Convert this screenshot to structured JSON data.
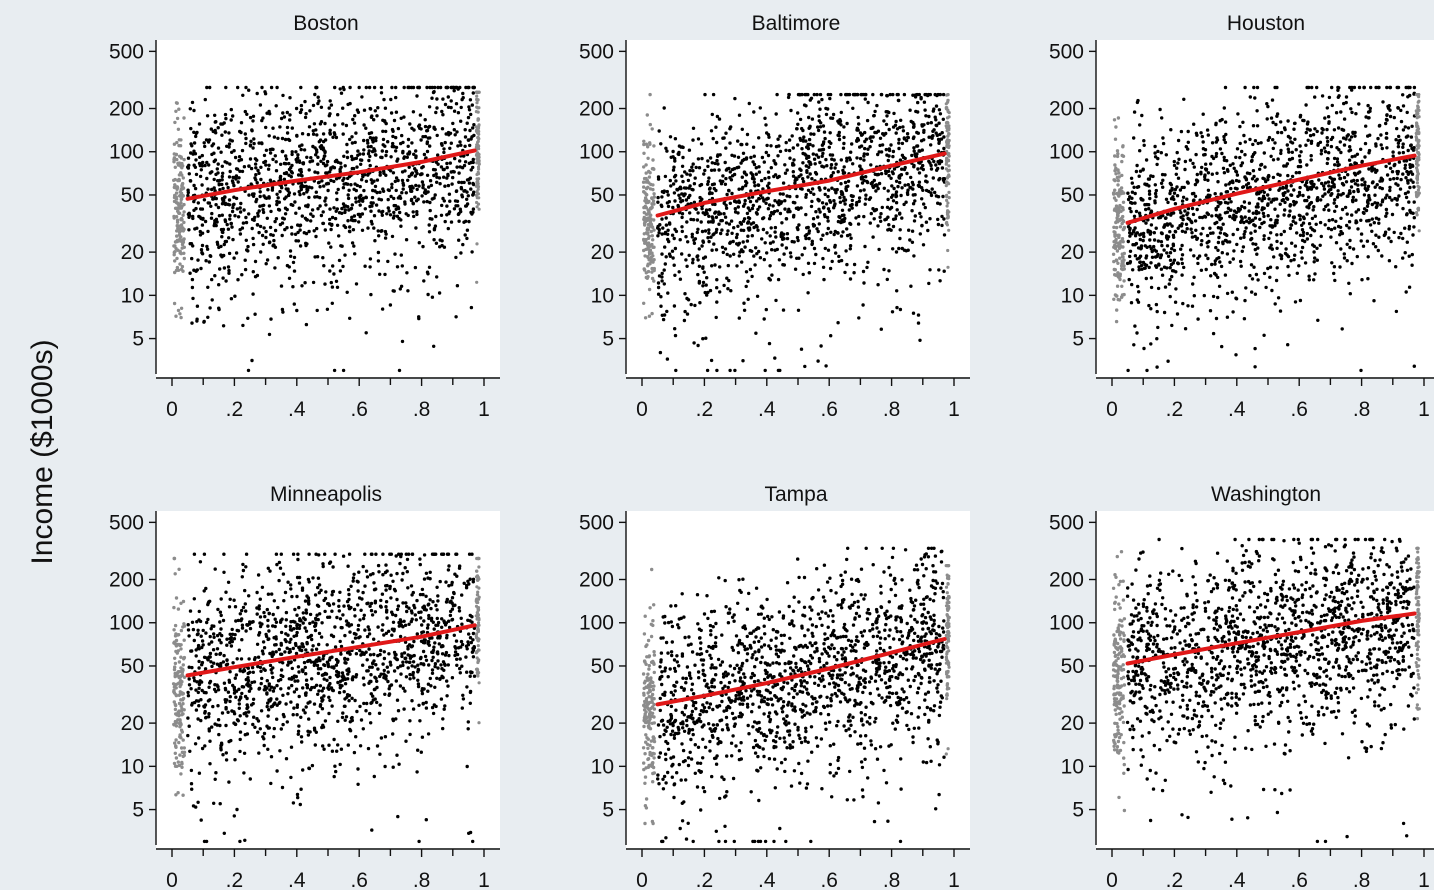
{
  "figure": {
    "ylabel": "Income ($1000s)",
    "background": "#e8edf1",
    "plot_background": "#ffffff"
  },
  "chart_data": [
    {
      "type": "scatter",
      "title": "Boston",
      "xlabel": "",
      "ylabel": "Income ($1000s)",
      "xlim": [
        0,
        1
      ],
      "ylim": [
        2.7,
        600
      ],
      "yscale": "log",
      "xticks": [
        0,
        0.2,
        0.4,
        0.6,
        0.8,
        1
      ],
      "xtick_labels": [
        "0",
        ".2",
        ".4",
        ".6",
        ".8",
        "1"
      ],
      "yticks": [
        5,
        10,
        20,
        50,
        100,
        200,
        500
      ],
      "ytick_labels": [
        "5",
        "10",
        "20",
        "50",
        "100",
        "200",
        "500"
      ],
      "grid": false,
      "series": [
        {
          "kind": "fit-line",
          "color": "#e01818",
          "x": [
            0.05,
            0.2,
            0.4,
            0.6,
            0.8,
            0.97
          ],
          "y": [
            47,
            54,
            63,
            72,
            85,
            102
          ]
        },
        {
          "kind": "scatter-main",
          "color": "#000000",
          "x_range": [
            0.05,
            0.97
          ],
          "y_min": 3,
          "y_max": 280,
          "median_start": 48,
          "median_end": 100
        },
        {
          "kind": "scatter-edge",
          "color": "#8c8c8c",
          "at": "both",
          "y_min": 4,
          "y_max": 260,
          "median": 40
        }
      ]
    },
    {
      "type": "scatter",
      "title": "Baltimore",
      "xlabel": "",
      "ylabel": "Income ($1000s)",
      "xlim": [
        0,
        1
      ],
      "ylim": [
        2.7,
        600
      ],
      "yscale": "log",
      "xticks": [
        0,
        0.2,
        0.4,
        0.6,
        0.8,
        1
      ],
      "xtick_labels": [
        "0",
        ".2",
        ".4",
        ".6",
        ".8",
        "1"
      ],
      "yticks": [
        5,
        10,
        20,
        50,
        100,
        200,
        500
      ],
      "ytick_labels": [
        "5",
        "10",
        "20",
        "50",
        "100",
        "200",
        "500"
      ],
      "grid": false,
      "series": [
        {
          "kind": "fit-line",
          "color": "#e01818",
          "x": [
            0.05,
            0.2,
            0.4,
            0.6,
            0.8,
            0.97
          ],
          "y": [
            36,
            44,
            53,
            63,
            80,
            97
          ]
        },
        {
          "kind": "scatter-main",
          "color": "#000000",
          "x_range": [
            0.05,
            0.97
          ],
          "y_min": 3,
          "y_max": 250,
          "median_start": 37,
          "median_end": 98
        },
        {
          "kind": "scatter-edge",
          "color": "#8c8c8c",
          "at": "both",
          "y_min": 4,
          "y_max": 250,
          "median": 35
        }
      ]
    },
    {
      "type": "scatter",
      "title": "Houston",
      "xlabel": "",
      "ylabel": "Income ($1000s)",
      "xlim": [
        0,
        1
      ],
      "ylim": [
        2.7,
        600
      ],
      "yscale": "log",
      "xticks": [
        0,
        0.2,
        0.4,
        0.6,
        0.8,
        1
      ],
      "xtick_labels": [
        "0",
        ".2",
        ".4",
        ".6",
        ".8",
        "1"
      ],
      "yticks": [
        5,
        10,
        20,
        50,
        100,
        200,
        500
      ],
      "ytick_labels": [
        "5",
        "10",
        "20",
        "50",
        "100",
        "200",
        "500"
      ],
      "grid": false,
      "series": [
        {
          "kind": "fit-line",
          "color": "#e01818",
          "x": [
            0.05,
            0.2,
            0.4,
            0.6,
            0.8,
            0.97
          ],
          "y": [
            32,
            40,
            51,
            64,
            80,
            94
          ]
        },
        {
          "kind": "scatter-main",
          "color": "#000000",
          "x_range": [
            0.05,
            0.97
          ],
          "y_min": 3,
          "y_max": 280,
          "median_start": 33,
          "median_end": 95
        },
        {
          "kind": "scatter-edge",
          "color": "#8c8c8c",
          "at": "both",
          "y_min": 3.5,
          "y_max": 250,
          "median": 30
        }
      ]
    },
    {
      "type": "scatter",
      "title": "Minneapolis",
      "xlabel": "",
      "ylabel": "Income ($1000s)",
      "xlim": [
        0,
        1
      ],
      "ylim": [
        2.7,
        600
      ],
      "yscale": "log",
      "xticks": [
        0,
        0.2,
        0.4,
        0.6,
        0.8,
        1
      ],
      "xtick_labels": [
        "0",
        ".2",
        ".4",
        ".6",
        ".8",
        "1"
      ],
      "yticks": [
        5,
        10,
        20,
        50,
        100,
        200,
        500
      ],
      "ytick_labels": [
        "5",
        "10",
        "20",
        "50",
        "100",
        "200",
        "500"
      ],
      "grid": false,
      "series": [
        {
          "kind": "fit-line",
          "color": "#e01818",
          "x": [
            0.05,
            0.2,
            0.4,
            0.6,
            0.8,
            0.97
          ],
          "y": [
            43,
            49,
            58,
            68,
            80,
            96
          ]
        },
        {
          "kind": "scatter-main",
          "color": "#000000",
          "x_range": [
            0.05,
            0.97
          ],
          "y_min": 3,
          "y_max": 300,
          "median_start": 44,
          "median_end": 97
        },
        {
          "kind": "scatter-edge",
          "color": "#8c8c8c",
          "at": "both",
          "y_min": 3,
          "y_max": 280,
          "median": 35
        }
      ]
    },
    {
      "type": "scatter",
      "title": "Tampa",
      "xlabel": "",
      "ylabel": "Income ($1000s)",
      "xlim": [
        0,
        1
      ],
      "ylim": [
        2.7,
        600
      ],
      "yscale": "log",
      "xticks": [
        0,
        0.2,
        0.4,
        0.6,
        0.8,
        1
      ],
      "xtick_labels": [
        "0",
        ".2",
        ".4",
        ".6",
        ".8",
        "1"
      ],
      "yticks": [
        5,
        10,
        20,
        50,
        100,
        200,
        500
      ],
      "ytick_labels": [
        "5",
        "10",
        "20",
        "50",
        "100",
        "200",
        "500"
      ],
      "grid": false,
      "series": [
        {
          "kind": "fit-line",
          "color": "#e01818",
          "x": [
            0.05,
            0.2,
            0.4,
            0.6,
            0.8,
            0.97
          ],
          "y": [
            27,
            31,
            38,
            48,
            62,
            77
          ]
        },
        {
          "kind": "scatter-main",
          "color": "#000000",
          "x_range": [
            0.05,
            0.97
          ],
          "y_min": 3,
          "y_max": 330,
          "median_start": 27,
          "median_end": 78
        },
        {
          "kind": "scatter-edge",
          "color": "#8c8c8c",
          "at": "both",
          "y_min": 4,
          "y_max": 250,
          "median": 25
        }
      ]
    },
    {
      "type": "scatter",
      "title": "Washington",
      "xlabel": "",
      "ylabel": "Income ($1000s)",
      "xlim": [
        0,
        1
      ],
      "ylim": [
        2.7,
        600
      ],
      "yscale": "log",
      "xticks": [
        0,
        0.2,
        0.4,
        0.6,
        0.8,
        1
      ],
      "xtick_labels": [
        "0",
        ".2",
        ".4",
        ".6",
        ".8",
        "1"
      ],
      "yticks": [
        5,
        10,
        20,
        50,
        100,
        200,
        500
      ],
      "ytick_labels": [
        "5",
        "10",
        "20",
        "50",
        "100",
        "200",
        "500"
      ],
      "grid": false,
      "series": [
        {
          "kind": "fit-line",
          "color": "#e01818",
          "x": [
            0.05,
            0.2,
            0.4,
            0.6,
            0.8,
            0.97
          ],
          "y": [
            52,
            60,
            72,
            86,
            103,
            116
          ]
        },
        {
          "kind": "scatter-main",
          "color": "#000000",
          "x_range": [
            0.05,
            0.97
          ],
          "y_min": 3,
          "y_max": 380,
          "median_start": 53,
          "median_end": 118
        },
        {
          "kind": "scatter-edge",
          "color": "#8c8c8c",
          "at": "both",
          "y_min": 3.5,
          "y_max": 330,
          "median": 45
        }
      ]
    }
  ]
}
